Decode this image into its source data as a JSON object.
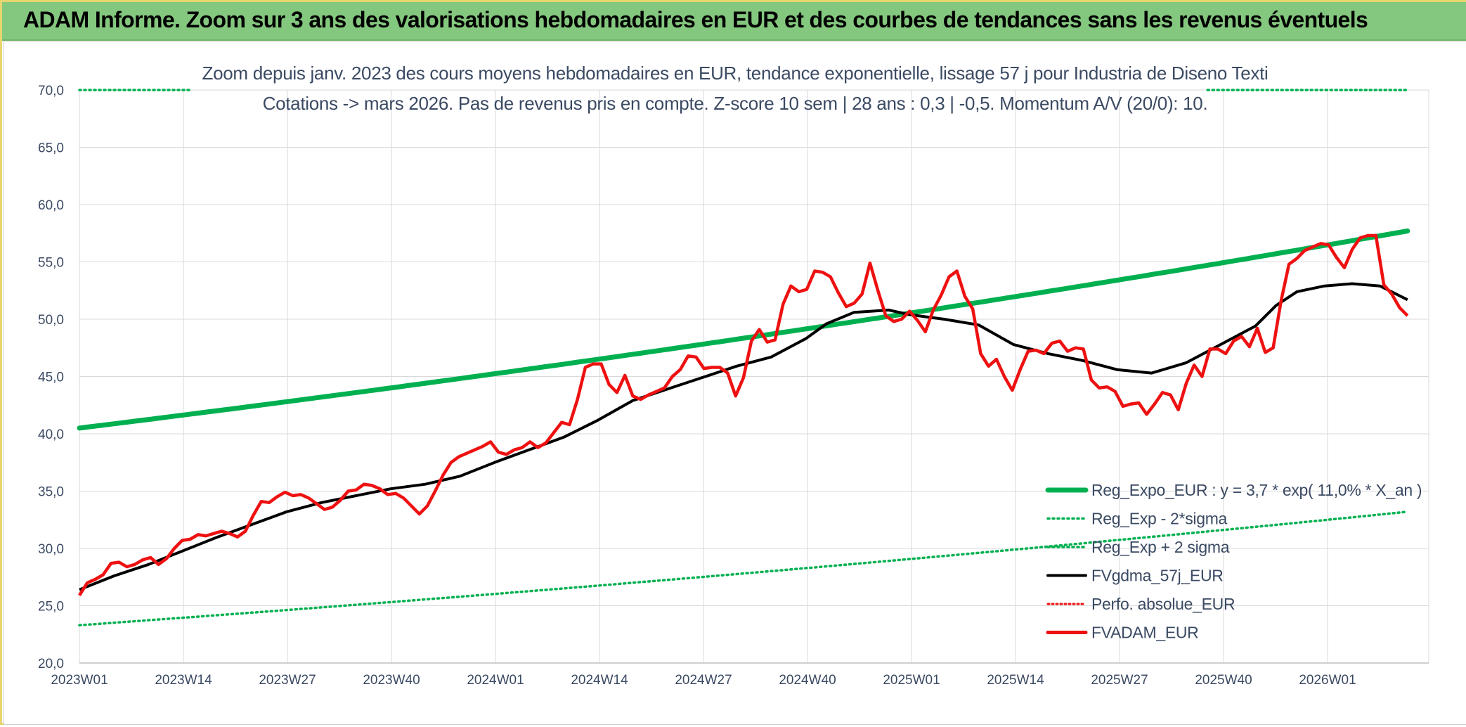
{
  "banner": {
    "title": "ADAM Informe. Zoom sur 3 ans des valorisations hebdomadaires en EUR et des courbes de tendances sans les revenus éventuels"
  },
  "colors": {
    "banner_bg": "#84c77e",
    "trend": "#00b050",
    "price": "#ee1111",
    "smooth": "#000000",
    "perf": "#ee1111",
    "text": "#3b4a63",
    "grid": "#d9d9d9"
  },
  "chart_data": {
    "type": "line",
    "title_lines": [
      "Zoom depuis janv. 2023 des cours moyens hebdomadaires en EUR, tendance exponentielle, lissage 57 j pour Industria de Diseno Texti",
      "Cotations -> mars 2026. Pas de revenus pris en compte. Z-score 10 sem | 28 ans : 0,3 | -0,5. Momentum A/V (20/0): 10."
    ],
    "x_tick_labels": [
      "2023W01",
      "2023W14",
      "2023W27",
      "2023W40",
      "2024W01",
      "2024W14",
      "2024W27",
      "2024W40",
      "2025W01",
      "2025W14",
      "2025W27",
      "2025W40",
      "2026W01"
    ],
    "y_tick_labels": [
      "20,0",
      "25,0",
      "30,0",
      "35,0",
      "40,0",
      "45,0",
      "50,0",
      "55,0",
      "60,0",
      "65,0",
      "70,0"
    ],
    "ylim": [
      20,
      70
    ],
    "weeks": 167,
    "grid": true,
    "legend_position": "bottom-right",
    "legend": [
      {
        "key": "trend",
        "label": "Reg_Expo_EUR : y = 3,7 * exp( 11,0% *  X_an )"
      },
      {
        "key": "minus2",
        "label": "Reg_Exp - 2*sigma"
      },
      {
        "key": "plus2",
        "label": "Reg_Exp + 2 sigma"
      },
      {
        "key": "smooth",
        "label": "FVgdma_57j_EUR"
      },
      {
        "key": "perf",
        "label": "Perfo. absolue_EUR"
      },
      {
        "key": "price",
        "label": "FVADAM_EUR"
      }
    ],
    "series": [
      {
        "key": "trend",
        "name": "Reg_Expo_EUR",
        "x_start": 0,
        "x_end": 166,
        "y_start": 40.5,
        "y_end": 57.7,
        "shape": "exponential"
      },
      {
        "key": "minus2",
        "name": "Reg_Exp - 2*sigma",
        "x_start": 0,
        "x_end": 166,
        "y_start": 23.3,
        "y_end": 33.2,
        "shape": "exponential"
      },
      {
        "key": "plus2",
        "name": "Reg_Exp + 2 sigma",
        "y_constant": 70.0,
        "visible_ranges": [
          [
            0,
            14
          ],
          [
            141,
            166
          ]
        ]
      },
      {
        "key": "smooth",
        "name": "FVgdma_57j_EUR",
        "points": [
          [
            0,
            26.4
          ],
          [
            5,
            27.6
          ],
          [
            10,
            28.6
          ],
          [
            15,
            29.8
          ],
          [
            20,
            31.0
          ],
          [
            25,
            32.1
          ],
          [
            30,
            33.2
          ],
          [
            35,
            34.0
          ],
          [
            40,
            34.6
          ],
          [
            45,
            35.2
          ],
          [
            50,
            35.6
          ],
          [
            55,
            36.3
          ],
          [
            60,
            37.5
          ],
          [
            65,
            38.6
          ],
          [
            70,
            39.7
          ],
          [
            75,
            41.2
          ],
          [
            80,
            42.9
          ],
          [
            85,
            43.9
          ],
          [
            90,
            44.9
          ],
          [
            95,
            45.9
          ],
          [
            100,
            46.7
          ],
          [
            105,
            48.3
          ],
          [
            108,
            49.6
          ],
          [
            112,
            50.6
          ],
          [
            117,
            50.8
          ],
          [
            120,
            50.4
          ],
          [
            125,
            50.0
          ],
          [
            130,
            49.5
          ],
          [
            135,
            47.8
          ],
          [
            140,
            47.0
          ],
          [
            145,
            46.4
          ],
          [
            150,
            45.6
          ],
          [
            155,
            45.3
          ],
          [
            160,
            46.2
          ],
          [
            165,
            47.8
          ],
          [
            170,
            49.4
          ],
          [
            173,
            51.2
          ],
          [
            176,
            52.4
          ],
          [
            180,
            52.9
          ],
          [
            184,
            53.1
          ],
          [
            188,
            52.9
          ],
          [
            190,
            52.3
          ],
          [
            192,
            51.7
          ]
        ]
      },
      {
        "key": "price",
        "name": "FVADAM_EUR",
        "points": [
          [
            0,
            25.9
          ],
          [
            1,
            27.0
          ],
          [
            2,
            27.3
          ],
          [
            3,
            27.7
          ],
          [
            4,
            28.7
          ],
          [
            5,
            28.8
          ],
          [
            6,
            28.4
          ],
          [
            7,
            28.6
          ],
          [
            8,
            29.0
          ],
          [
            9,
            29.2
          ],
          [
            10,
            28.6
          ],
          [
            11,
            29.1
          ],
          [
            12,
            30.0
          ],
          [
            13,
            30.7
          ],
          [
            14,
            30.8
          ],
          [
            15,
            31.2
          ],
          [
            16,
            31.1
          ],
          [
            17,
            31.3
          ],
          [
            18,
            31.5
          ],
          [
            19,
            31.3
          ],
          [
            20,
            31.0
          ],
          [
            21,
            31.5
          ],
          [
            22,
            32.9
          ],
          [
            23,
            34.1
          ],
          [
            24,
            34.0
          ],
          [
            25,
            34.5
          ],
          [
            26,
            34.9
          ],
          [
            27,
            34.6
          ],
          [
            28,
            34.7
          ],
          [
            29,
            34.4
          ],
          [
            30,
            33.9
          ],
          [
            31,
            33.4
          ],
          [
            32,
            33.6
          ],
          [
            33,
            34.2
          ],
          [
            34,
            35.0
          ],
          [
            35,
            35.1
          ],
          [
            36,
            35.6
          ],
          [
            37,
            35.5
          ],
          [
            38,
            35.2
          ],
          [
            39,
            34.7
          ],
          [
            40,
            34.8
          ],
          [
            41,
            34.4
          ],
          [
            42,
            33.7
          ],
          [
            43,
            33.0
          ],
          [
            44,
            33.7
          ],
          [
            45,
            35.0
          ],
          [
            46,
            36.4
          ],
          [
            47,
            37.5
          ],
          [
            48,
            38.0
          ],
          [
            49,
            38.3
          ],
          [
            50,
            38.6
          ],
          [
            51,
            38.9
          ],
          [
            52,
            39.3
          ],
          [
            53,
            38.4
          ],
          [
            54,
            38.2
          ],
          [
            55,
            38.6
          ],
          [
            56,
            38.8
          ],
          [
            57,
            39.3
          ],
          [
            58,
            38.8
          ],
          [
            59,
            39.2
          ],
          [
            60,
            40.1
          ],
          [
            61,
            41.0
          ],
          [
            62,
            40.8
          ],
          [
            63,
            43.0
          ],
          [
            64,
            45.8
          ],
          [
            65,
            46.1
          ],
          [
            66,
            46.1
          ],
          [
            67,
            44.3
          ],
          [
            68,
            43.6
          ],
          [
            69,
            45.1
          ],
          [
            70,
            43.3
          ],
          [
            71,
            43.0
          ],
          [
            72,
            43.4
          ],
          [
            73,
            43.7
          ],
          [
            74,
            44.0
          ],
          [
            75,
            45.0
          ],
          [
            76,
            45.6
          ],
          [
            77,
            46.8
          ],
          [
            78,
            46.7
          ],
          [
            79,
            45.7
          ],
          [
            80,
            45.8
          ],
          [
            81,
            45.8
          ],
          [
            82,
            45.3
          ],
          [
            83,
            43.3
          ],
          [
            84,
            44.9
          ],
          [
            85,
            48.1
          ],
          [
            86,
            49.1
          ],
          [
            87,
            48.0
          ],
          [
            88,
            48.2
          ],
          [
            89,
            51.3
          ],
          [
            90,
            52.9
          ],
          [
            91,
            52.4
          ],
          [
            92,
            52.6
          ],
          [
            93,
            54.2
          ],
          [
            94,
            54.1
          ],
          [
            95,
            53.7
          ],
          [
            96,
            52.3
          ],
          [
            97,
            51.1
          ],
          [
            98,
            51.4
          ],
          [
            99,
            52.2
          ],
          [
            100,
            54.9
          ],
          [
            101,
            52.5
          ],
          [
            102,
            50.3
          ],
          [
            103,
            49.8
          ],
          [
            104,
            50.0
          ],
          [
            105,
            50.7
          ],
          [
            106,
            49.9
          ],
          [
            107,
            48.9
          ],
          [
            108,
            50.8
          ],
          [
            109,
            52.1
          ],
          [
            110,
            53.7
          ],
          [
            111,
            54.2
          ],
          [
            112,
            52.0
          ],
          [
            113,
            50.9
          ],
          [
            114,
            47.0
          ],
          [
            115,
            45.9
          ],
          [
            116,
            46.5
          ],
          [
            117,
            45.0
          ],
          [
            118,
            43.8
          ],
          [
            119,
            45.6
          ],
          [
            120,
            47.2
          ],
          [
            121,
            47.3
          ],
          [
            122,
            47.0
          ],
          [
            123,
            47.9
          ],
          [
            124,
            48.1
          ],
          [
            125,
            47.2
          ],
          [
            126,
            47.5
          ],
          [
            127,
            47.4
          ],
          [
            128,
            44.7
          ],
          [
            129,
            44.0
          ],
          [
            130,
            44.1
          ],
          [
            131,
            43.7
          ],
          [
            132,
            42.4
          ],
          [
            133,
            42.6
          ],
          [
            134,
            42.7
          ],
          [
            135,
            41.7
          ],
          [
            136,
            42.6
          ],
          [
            137,
            43.6
          ],
          [
            138,
            43.4
          ],
          [
            139,
            42.1
          ],
          [
            140,
            44.4
          ],
          [
            141,
            46.0
          ],
          [
            142,
            45.0
          ],
          [
            143,
            47.4
          ],
          [
            144,
            47.4
          ],
          [
            145,
            47.0
          ],
          [
            146,
            48.1
          ],
          [
            147,
            48.5
          ],
          [
            148,
            47.6
          ],
          [
            149,
            49.2
          ],
          [
            150,
            47.1
          ],
          [
            151,
            47.5
          ],
          [
            152,
            51.6
          ],
          [
            153,
            54.8
          ],
          [
            154,
            55.3
          ],
          [
            155,
            56.0
          ],
          [
            156,
            56.3
          ],
          [
            157,
            56.6
          ],
          [
            158,
            56.5
          ],
          [
            159,
            55.4
          ],
          [
            160,
            54.5
          ],
          [
            161,
            56.1
          ],
          [
            162,
            57.1
          ],
          [
            163,
            57.3
          ],
          [
            164,
            57.3
          ],
          [
            165,
            53.0
          ],
          [
            166,
            52.2
          ],
          [
            167,
            51.0
          ],
          [
            168,
            50.3
          ]
        ]
      }
    ]
  }
}
